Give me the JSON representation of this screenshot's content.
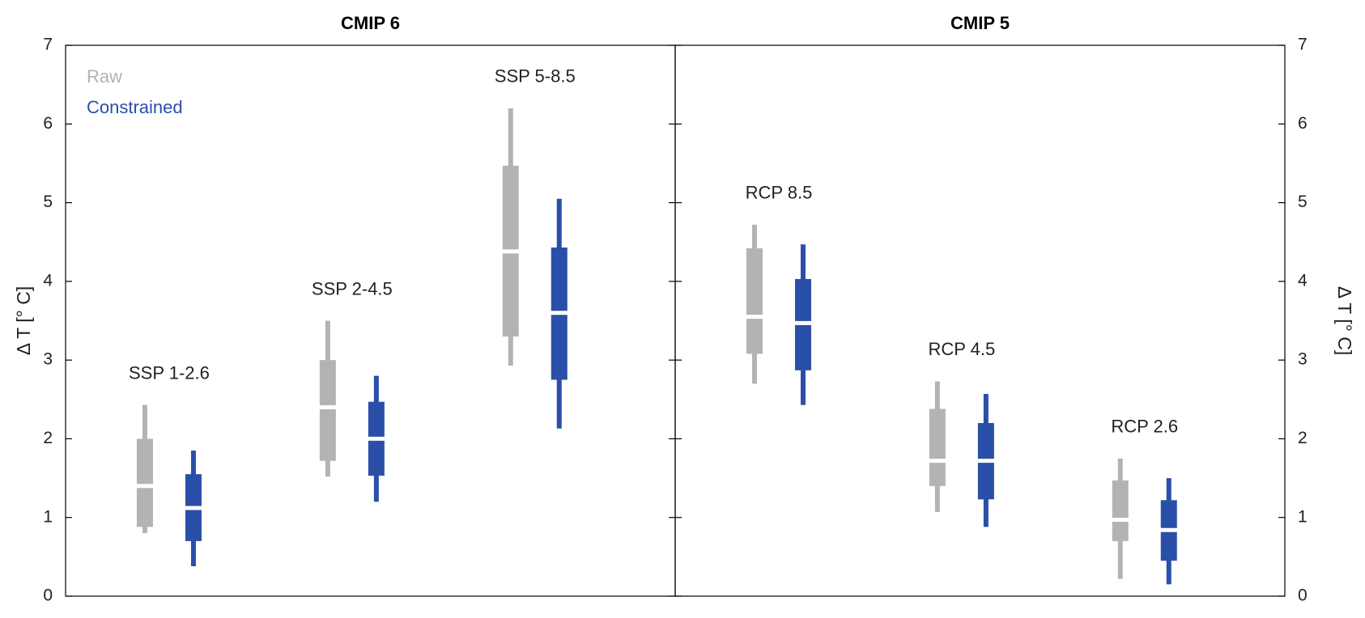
{
  "chart_data": [
    {
      "type": "box",
      "title": "CMIP 6",
      "ylabel": "Δ T [° C]",
      "ylim": [
        0,
        7
      ],
      "yticks": [
        0,
        1,
        2,
        3,
        4,
        5,
        6,
        7
      ],
      "axis_side": "left",
      "legend": "upper left",
      "categories": [
        "SSP 1-2.6",
        "SSP 2-4.5",
        "SSP 5-8.5"
      ],
      "series": [
        {
          "name": "Raw",
          "color": "#b3b3b3",
          "values": [
            [
              0.8,
              0.88,
              1.4,
              2.0,
              2.43
            ],
            [
              1.52,
              1.72,
              2.4,
              3.0,
              3.5
            ],
            [
              2.93,
              3.3,
              4.38,
              5.47,
              6.2
            ]
          ]
        },
        {
          "name": "Constrained",
          "color": "#2a4fa8",
          "values": [
            [
              0.38,
              0.7,
              1.12,
              1.55,
              1.85
            ],
            [
              1.2,
              1.53,
              2.0,
              2.47,
              2.8
            ],
            [
              2.13,
              2.75,
              3.6,
              4.43,
              5.05
            ]
          ]
        }
      ]
    },
    {
      "type": "box",
      "title": "CMIP 5",
      "ylabel": "Δ T [° C]",
      "ylim": [
        0,
        7
      ],
      "yticks": [
        0,
        1,
        2,
        3,
        4,
        5,
        6,
        7
      ],
      "axis_side": "right",
      "categories": [
        "RCP 8.5",
        "RCP 4.5",
        "RCP 2.6"
      ],
      "series": [
        {
          "color": "#b3b3b3",
          "values": [
            [
              2.7,
              3.08,
              3.55,
              4.42,
              4.72
            ],
            [
              1.07,
              1.4,
              1.72,
              2.38,
              2.73
            ],
            [
              0.22,
              0.7,
              0.97,
              1.47,
              1.75
            ]
          ]
        },
        {
          "color": "#2a4fa8",
          "values": [
            [
              2.43,
              2.87,
              3.47,
              4.03,
              4.47
            ],
            [
              0.88,
              1.23,
              1.72,
              2.2,
              2.57
            ],
            [
              0.15,
              0.45,
              0.84,
              1.22,
              1.5
            ]
          ]
        }
      ]
    }
  ]
}
